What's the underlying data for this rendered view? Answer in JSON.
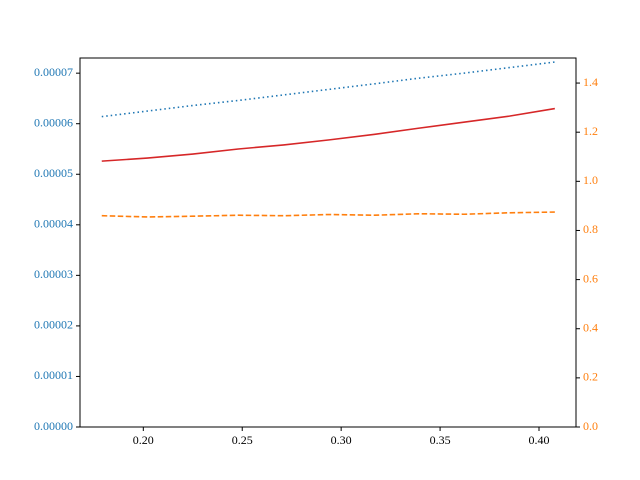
{
  "chart_data": {
    "type": "line",
    "x": [
      0.179,
      0.202,
      0.225,
      0.248,
      0.271,
      0.294,
      0.317,
      0.339,
      0.362,
      0.385,
      0.408
    ],
    "series": [
      {
        "name": "blue",
        "color": "#1f77b4",
        "linestyle": "dotted",
        "axis": "y",
        "values": [
          6.14e-05,
          6.25e-05,
          6.36e-05,
          6.46e-05,
          6.57e-05,
          6.68e-05,
          6.79e-05,
          6.9e-05,
          7e-05,
          7.11e-05,
          7.22e-05
        ]
      },
      {
        "name": "red",
        "color": "#d62728",
        "linestyle": "solid",
        "axis": "y",
        "values": [
          5.26e-05,
          5.32e-05,
          5.4e-05,
          5.5e-05,
          5.58e-05,
          5.68e-05,
          5.79e-05,
          5.91e-05,
          6.03e-05,
          6.15e-05,
          6.3e-05
        ]
      },
      {
        "name": "orange",
        "color": "#ff7f0e",
        "linestyle": "dashed",
        "axis": "y2",
        "values": [
          0.86,
          0.855,
          0.858,
          0.862,
          0.86,
          0.865,
          0.862,
          0.868,
          0.866,
          0.872,
          0.875
        ]
      }
    ],
    "xlim": [
      0.168,
      0.4187
    ],
    "xticks": [
      {
        "value": 0.2,
        "label": "0.20"
      },
      {
        "value": 0.25,
        "label": "0.25"
      },
      {
        "value": 0.3,
        "label": "0.30"
      },
      {
        "value": 0.35,
        "label": "0.35"
      },
      {
        "value": 0.4,
        "label": "0.40"
      }
    ],
    "ylim": [
      0,
      7.3e-05
    ],
    "yticks": [
      {
        "value": 0,
        "label": "0.00000"
      },
      {
        "value": 1e-05,
        "label": "0.00001"
      },
      {
        "value": 2e-05,
        "label": "0.00002"
      },
      {
        "value": 3e-05,
        "label": "0.00003"
      },
      {
        "value": 4e-05,
        "label": "0.00004"
      },
      {
        "value": 5e-05,
        "label": "0.00005"
      },
      {
        "value": 6e-05,
        "label": "0.00006"
      },
      {
        "value": 7e-05,
        "label": "0.00007"
      }
    ],
    "y_color": "#1f77b4",
    "y2lim": [
      0,
      1.502
    ],
    "y2ticks": [
      {
        "value": 0,
        "label": "0.0"
      },
      {
        "value": 0.2,
        "label": "0.2"
      },
      {
        "value": 0.4,
        "label": "0.4"
      },
      {
        "value": 0.6,
        "label": "0.6"
      },
      {
        "value": 0.8,
        "label": "0.8"
      },
      {
        "value": 1.0,
        "label": "1.0"
      },
      {
        "value": 1.2,
        "label": "1.2"
      },
      {
        "value": 1.4,
        "label": "1.4"
      }
    ],
    "y2_color": "#ff7f0e"
  }
}
